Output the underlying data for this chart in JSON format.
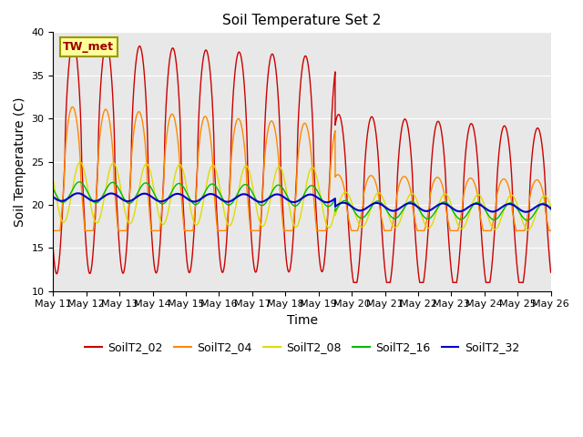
{
  "title": "Soil Temperature Set 2",
  "xlabel": "Time",
  "ylabel": "Soil Temperature (C)",
  "ylim": [
    10,
    40
  ],
  "xlim": [
    10,
    25
  ],
  "series_names": [
    "SoilT2_02",
    "SoilT2_04",
    "SoilT2_08",
    "SoilT2_16",
    "SoilT2_32"
  ],
  "series_colors": [
    "#cc0000",
    "#ff8800",
    "#dddd00",
    "#00bb00",
    "#0000cc"
  ],
  "series_linewidths": [
    1.0,
    1.0,
    1.0,
    1.0,
    1.5
  ],
  "annotation": "TW_met",
  "annotation_color": "#990000",
  "annotation_bbox_fc": "#ffff99",
  "annotation_bbox_ec": "#999900",
  "bg_color": "#e8e8e8",
  "title_fontsize": 11,
  "tick_fontsize": 8,
  "label_fontsize": 10,
  "yticks": [
    10,
    15,
    20,
    25,
    30,
    35,
    40
  ],
  "xtick_days": [
    10,
    11,
    12,
    13,
    14,
    15,
    16,
    17,
    18,
    19,
    20,
    21,
    22,
    23,
    24,
    25
  ],
  "xtick_labels": [
    "May 11",
    "May 12",
    "May 13",
    "May 14",
    "May 15",
    "May 16",
    "May 17",
    "May 18",
    "May 19",
    "May 20",
    "May 21",
    "May 22",
    "May 23",
    "May 24",
    "May 25",
    "May 26"
  ]
}
